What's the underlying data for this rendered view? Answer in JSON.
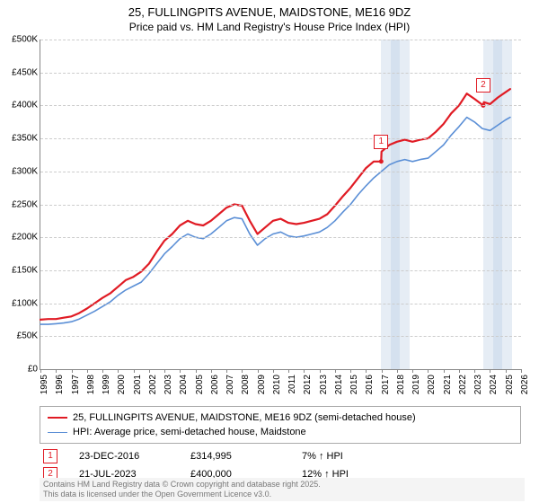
{
  "title_line1": "25, FULLINGPITS AVENUE, MAIDSTONE, ME16 9DZ",
  "title_line2": "Price paid vs. HM Land Registry's House Price Index (HPI)",
  "chart": {
    "type": "line",
    "background_color": "#ffffff",
    "grid_color": "#cccccc",
    "ylim": [
      0,
      500000
    ],
    "ytick_step": 50000,
    "ytick_labels": [
      "£0",
      "£50K",
      "£100K",
      "£150K",
      "£200K",
      "£250K",
      "£300K",
      "£350K",
      "£400K",
      "£450K",
      "£500K"
    ],
    "xlim": [
      1995,
      2026
    ],
    "xtick_step": 1,
    "xtick_labels": [
      "1995",
      "1996",
      "1997",
      "1998",
      "1999",
      "2000",
      "2001",
      "2002",
      "2003",
      "2004",
      "2005",
      "2006",
      "2007",
      "2008",
      "2009",
      "2010",
      "2011",
      "2012",
      "2013",
      "2014",
      "2015",
      "2016",
      "2017",
      "2018",
      "2019",
      "2020",
      "2021",
      "2022",
      "2023",
      "2024",
      "2025",
      "2026"
    ],
    "bands": [
      {
        "from": 2016.98,
        "to": 2017.6,
        "color": "#e6edf5"
      },
      {
        "from": 2017.6,
        "to": 2018.2,
        "color": "#d5e1ef"
      },
      {
        "from": 2018.2,
        "to": 2018.8,
        "color": "#e6edf5"
      },
      {
        "from": 2023.56,
        "to": 2024.2,
        "color": "#e6edf5"
      },
      {
        "from": 2024.2,
        "to": 2024.8,
        "color": "#d5e1ef"
      },
      {
        "from": 2024.8,
        "to": 2025.4,
        "color": "#e6edf5"
      }
    ],
    "series": [
      {
        "name": "price_paid",
        "label": "25, FULLINGPITS AVENUE, MAIDSTONE, ME16 9DZ (semi-detached house)",
        "color": "#e01b24",
        "line_width": 2.2,
        "data": [
          [
            1995.0,
            75000
          ],
          [
            1995.5,
            76000
          ],
          [
            1996.0,
            76000
          ],
          [
            1996.5,
            78000
          ],
          [
            1997.0,
            80000
          ],
          [
            1997.5,
            85000
          ],
          [
            1998.0,
            92000
          ],
          [
            1998.5,
            100000
          ],
          [
            1999.0,
            108000
          ],
          [
            1999.5,
            115000
          ],
          [
            2000.0,
            125000
          ],
          [
            2000.5,
            135000
          ],
          [
            2001.0,
            140000
          ],
          [
            2001.5,
            148000
          ],
          [
            2002.0,
            160000
          ],
          [
            2002.5,
            178000
          ],
          [
            2003.0,
            195000
          ],
          [
            2003.5,
            205000
          ],
          [
            2004.0,
            218000
          ],
          [
            2004.5,
            225000
          ],
          [
            2005.0,
            220000
          ],
          [
            2005.5,
            218000
          ],
          [
            2006.0,
            225000
          ],
          [
            2006.5,
            235000
          ],
          [
            2007.0,
            245000
          ],
          [
            2007.5,
            250000
          ],
          [
            2008.0,
            248000
          ],
          [
            2008.5,
            225000
          ],
          [
            2009.0,
            205000
          ],
          [
            2009.5,
            215000
          ],
          [
            2010.0,
            225000
          ],
          [
            2010.5,
            228000
          ],
          [
            2011.0,
            222000
          ],
          [
            2011.5,
            220000
          ],
          [
            2012.0,
            222000
          ],
          [
            2012.5,
            225000
          ],
          [
            2013.0,
            228000
          ],
          [
            2013.5,
            235000
          ],
          [
            2014.0,
            248000
          ],
          [
            2014.5,
            262000
          ],
          [
            2015.0,
            275000
          ],
          [
            2015.5,
            290000
          ],
          [
            2016.0,
            305000
          ],
          [
            2016.5,
            315000
          ],
          [
            2016.98,
            314995
          ],
          [
            2017.0,
            330000
          ],
          [
            2017.5,
            340000
          ],
          [
            2018.0,
            345000
          ],
          [
            2018.5,
            348000
          ],
          [
            2019.0,
            345000
          ],
          [
            2019.5,
            348000
          ],
          [
            2020.0,
            350000
          ],
          [
            2020.5,
            360000
          ],
          [
            2021.0,
            372000
          ],
          [
            2021.5,
            388000
          ],
          [
            2022.0,
            400000
          ],
          [
            2022.5,
            418000
          ],
          [
            2023.0,
            410000
          ],
          [
            2023.56,
            400000
          ],
          [
            2023.6,
            405000
          ],
          [
            2024.0,
            402000
          ],
          [
            2024.5,
            412000
          ],
          [
            2025.0,
            420000
          ],
          [
            2025.3,
            425000
          ]
        ]
      },
      {
        "name": "hpi",
        "label": "HPI: Average price, semi-detached house, Maidstone",
        "color": "#5b8fd6",
        "line_width": 1.6,
        "data": [
          [
            1995.0,
            68000
          ],
          [
            1995.5,
            68000
          ],
          [
            1996.0,
            69000
          ],
          [
            1996.5,
            70000
          ],
          [
            1997.0,
            72000
          ],
          [
            1997.5,
            76000
          ],
          [
            1998.0,
            82000
          ],
          [
            1998.5,
            88000
          ],
          [
            1999.0,
            95000
          ],
          [
            1999.5,
            102000
          ],
          [
            2000.0,
            112000
          ],
          [
            2000.5,
            120000
          ],
          [
            2001.0,
            126000
          ],
          [
            2001.5,
            132000
          ],
          [
            2002.0,
            145000
          ],
          [
            2002.5,
            160000
          ],
          [
            2003.0,
            175000
          ],
          [
            2003.5,
            186000
          ],
          [
            2004.0,
            198000
          ],
          [
            2004.5,
            205000
          ],
          [
            2005.0,
            200000
          ],
          [
            2005.5,
            198000
          ],
          [
            2006.0,
            205000
          ],
          [
            2006.5,
            215000
          ],
          [
            2007.0,
            225000
          ],
          [
            2007.5,
            230000
          ],
          [
            2008.0,
            228000
          ],
          [
            2008.5,
            205000
          ],
          [
            2009.0,
            188000
          ],
          [
            2009.5,
            198000
          ],
          [
            2010.0,
            205000
          ],
          [
            2010.5,
            208000
          ],
          [
            2011.0,
            202000
          ],
          [
            2011.5,
            200000
          ],
          [
            2012.0,
            202000
          ],
          [
            2012.5,
            205000
          ],
          [
            2013.0,
            208000
          ],
          [
            2013.5,
            215000
          ],
          [
            2014.0,
            225000
          ],
          [
            2014.5,
            238000
          ],
          [
            2015.0,
            250000
          ],
          [
            2015.5,
            265000
          ],
          [
            2016.0,
            278000
          ],
          [
            2016.5,
            290000
          ],
          [
            2017.0,
            300000
          ],
          [
            2017.5,
            310000
          ],
          [
            2018.0,
            315000
          ],
          [
            2018.5,
            318000
          ],
          [
            2019.0,
            315000
          ],
          [
            2019.5,
            318000
          ],
          [
            2020.0,
            320000
          ],
          [
            2020.5,
            330000
          ],
          [
            2021.0,
            340000
          ],
          [
            2021.5,
            355000
          ],
          [
            2022.0,
            368000
          ],
          [
            2022.5,
            382000
          ],
          [
            2023.0,
            375000
          ],
          [
            2023.5,
            365000
          ],
          [
            2024.0,
            362000
          ],
          [
            2024.5,
            370000
          ],
          [
            2025.0,
            378000
          ],
          [
            2025.3,
            382000
          ]
        ]
      }
    ],
    "markers": [
      {
        "id": "1",
        "x": 2016.98,
        "y": 314995
      },
      {
        "id": "2",
        "x": 2023.56,
        "y": 400000
      }
    ],
    "label_fontsize": 10,
    "title_fontsize": 13
  },
  "legend": {
    "rows": [
      {
        "color": "#e01b24",
        "label": "25, FULLINGPITS AVENUE, MAIDSTONE, ME16 9DZ (semi-detached house)",
        "width": 2.2
      },
      {
        "color": "#5b8fd6",
        "label": "HPI: Average price, semi-detached house, Maidstone",
        "width": 1.6
      }
    ]
  },
  "sales": [
    {
      "id": "1",
      "date": "23-DEC-2016",
      "price": "£314,995",
      "pct": "7% ↑ HPI"
    },
    {
      "id": "2",
      "date": "21-JUL-2023",
      "price": "£400,000",
      "pct": "12% ↑ HPI"
    }
  ],
  "footer_line1": "Contains HM Land Registry data © Crown copyright and database right 2025.",
  "footer_line2": "This data is licensed under the Open Government Licence v3.0."
}
